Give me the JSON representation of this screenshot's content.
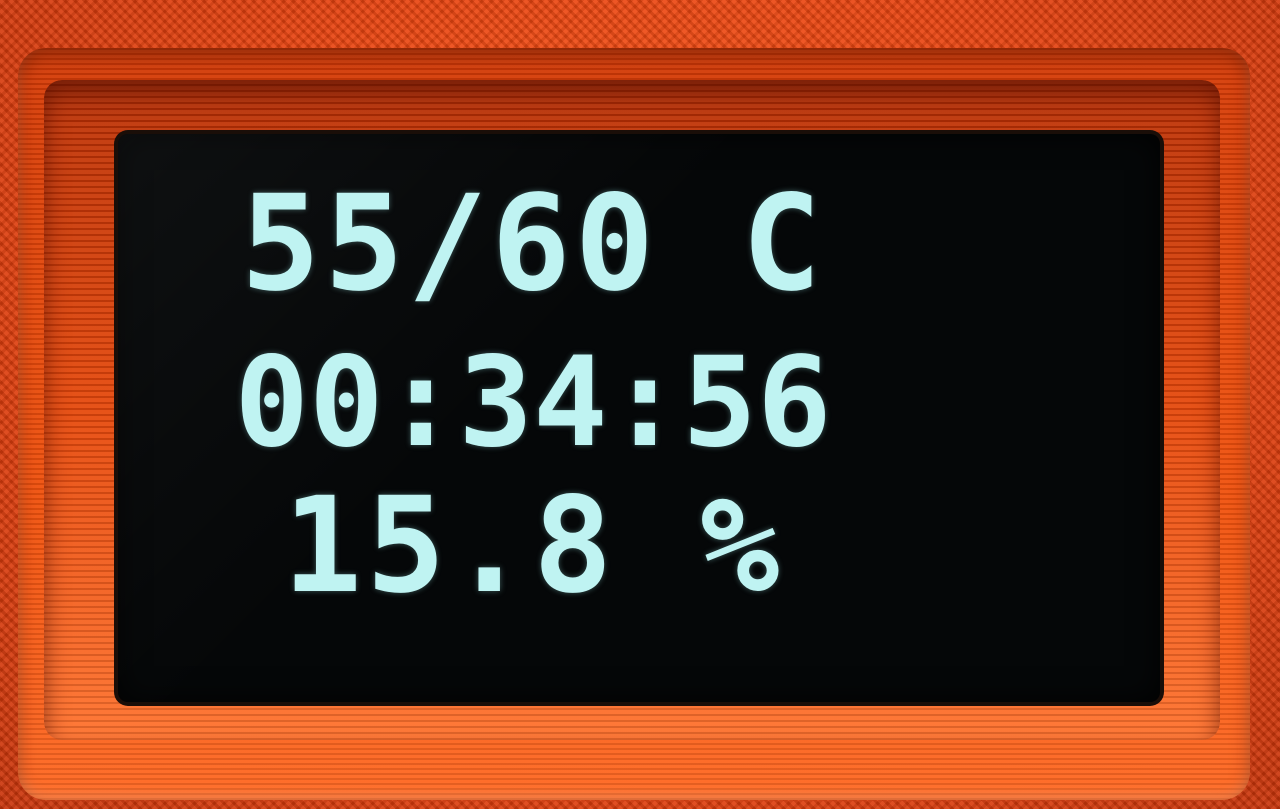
{
  "display": {
    "temperature_line": "55/60 C",
    "timer_line": "00:34:56",
    "percent_line": "15.8 %"
  },
  "colors": {
    "housing": "#e8430f",
    "screen_background": "#050708",
    "oled_text": "#bff3f2"
  }
}
